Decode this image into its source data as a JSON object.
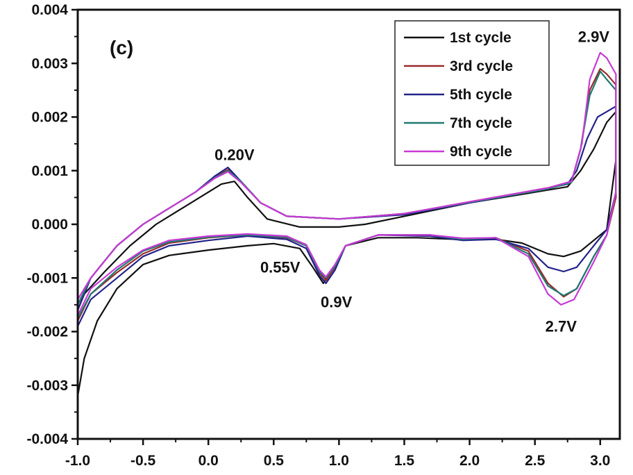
{
  "chart_data": {
    "type": "line",
    "title": "",
    "xlabel": "",
    "ylabel": "",
    "panel_label": "(c)",
    "xlim": [
      -1.0,
      3.15
    ],
    "ylim": [
      -0.004,
      0.004
    ],
    "x_ticks": [
      {
        "value": -1.0,
        "label": "-1.0"
      },
      {
        "value": -0.5,
        "label": "-0.5"
      },
      {
        "value": 0.0,
        "label": "0.0"
      },
      {
        "value": 0.5,
        "label": "0.5"
      },
      {
        "value": 1.0,
        "label": "1.0"
      },
      {
        "value": 1.5,
        "label": "1.5"
      },
      {
        "value": 2.0,
        "label": "2.0"
      },
      {
        "value": 2.5,
        "label": "2.5"
      },
      {
        "value": 3.0,
        "label": "3.0"
      }
    ],
    "y_ticks": [
      {
        "value": 0.004,
        "label": "0.004"
      },
      {
        "value": 0.003,
        "label": "0.003"
      },
      {
        "value": 0.002,
        "label": "0.002"
      },
      {
        "value": 0.001,
        "label": "0.001"
      },
      {
        "value": 0.0,
        "label": "0.000"
      },
      {
        "value": -0.001,
        "label": "-0.001"
      },
      {
        "value": -0.002,
        "label": "-0.002"
      },
      {
        "value": -0.003,
        "label": "-0.003"
      },
      {
        "value": -0.004,
        "label": "-0.004"
      }
    ],
    "grid": false,
    "legend_position": "top-right",
    "annotations": [
      {
        "text": "0.20V",
        "x": 0.2,
        "y": 0.0012
      },
      {
        "text": "2.9V",
        "x": 2.95,
        "y": 0.0034
      },
      {
        "text": "0.55V",
        "x": 0.55,
        "y": -0.0009
      },
      {
        "text": "0.9V",
        "x": 0.98,
        "y": -0.00155
      },
      {
        "text": "2.7V",
        "x": 2.7,
        "y": -0.002
      }
    ],
    "series": [
      {
        "name": "1st cycle",
        "color": "#111111",
        "points": [
          [
            -1.0,
            -0.0032
          ],
          [
            -0.95,
            -0.0025
          ],
          [
            -0.85,
            -0.0018
          ],
          [
            -0.7,
            -0.0012
          ],
          [
            -0.5,
            -0.00075
          ],
          [
            -0.3,
            -0.00058
          ],
          [
            0.0,
            -0.00048
          ],
          [
            0.3,
            -0.0004
          ],
          [
            0.5,
            -0.00036
          ],
          [
            0.7,
            -0.00045
          ],
          [
            0.8,
            -0.0008
          ],
          [
            0.88,
            -0.0011
          ],
          [
            0.95,
            -0.00085
          ],
          [
            1.05,
            -0.0004
          ],
          [
            1.3,
            -0.00025
          ],
          [
            1.6,
            -0.00025
          ],
          [
            1.9,
            -0.00028
          ],
          [
            2.2,
            -0.00028
          ],
          [
            2.4,
            -0.00035
          ],
          [
            2.6,
            -0.00055
          ],
          [
            2.72,
            -0.0006
          ],
          [
            2.85,
            -0.0005
          ],
          [
            2.95,
            -0.0003
          ],
          [
            3.05,
            -0.0001
          ],
          [
            3.12,
            0.0012
          ],
          [
            3.12,
            0.0021
          ],
          [
            3.05,
            0.0019
          ],
          [
            2.95,
            0.0014
          ],
          [
            2.85,
            0.001
          ],
          [
            2.75,
            0.0007
          ],
          [
            2.5,
            0.0006
          ],
          [
            2.0,
            0.0004
          ],
          [
            1.5,
            0.00015
          ],
          [
            1.2,
            0.0
          ],
          [
            1.0,
            -5e-05
          ],
          [
            0.7,
            -5e-05
          ],
          [
            0.45,
            0.0001
          ],
          [
            0.3,
            0.0005
          ],
          [
            0.2,
            0.0008
          ],
          [
            0.1,
            0.00075
          ],
          [
            0.0,
            0.0006
          ],
          [
            -0.2,
            0.0003
          ],
          [
            -0.4,
            0.0
          ],
          [
            -0.6,
            -0.0004
          ],
          [
            -0.8,
            -0.0009
          ],
          [
            -0.95,
            -0.0013
          ],
          [
            -1.0,
            -0.0016
          ]
        ]
      },
      {
        "name": "3rd cycle",
        "color": "#9a2a2a",
        "points": [
          [
            -1.0,
            -0.0018
          ],
          [
            -0.9,
            -0.0013
          ],
          [
            -0.7,
            -0.0009
          ],
          [
            -0.5,
            -0.00055
          ],
          [
            -0.3,
            -0.00035
          ],
          [
            0.0,
            -0.00025
          ],
          [
            0.3,
            -0.0002
          ],
          [
            0.6,
            -0.00025
          ],
          [
            0.75,
            -0.0004
          ],
          [
            0.85,
            -0.0009
          ],
          [
            0.9,
            -0.00105
          ],
          [
            0.97,
            -0.0008
          ],
          [
            1.05,
            -0.0004
          ],
          [
            1.3,
            -0.0002
          ],
          [
            1.7,
            -0.0002
          ],
          [
            1.95,
            -0.00028
          ],
          [
            2.2,
            -0.00025
          ],
          [
            2.45,
            -0.0005
          ],
          [
            2.6,
            -0.0011
          ],
          [
            2.72,
            -0.00135
          ],
          [
            2.82,
            -0.0012
          ],
          [
            2.95,
            -0.0006
          ],
          [
            3.05,
            -0.0002
          ],
          [
            3.12,
            0.0005
          ],
          [
            3.12,
            0.0026
          ],
          [
            3.05,
            0.0028
          ],
          [
            3.0,
            0.0029
          ],
          [
            2.92,
            0.0025
          ],
          [
            2.85,
            0.0014
          ],
          [
            2.78,
            0.0008
          ],
          [
            2.6,
            0.00068
          ],
          [
            2.0,
            0.00042
          ],
          [
            1.5,
            0.0002
          ],
          [
            1.0,
            0.0001
          ],
          [
            0.6,
            0.00015
          ],
          [
            0.4,
            0.0004
          ],
          [
            0.25,
            0.0008
          ],
          [
            0.15,
            0.00102
          ],
          [
            0.05,
            0.00088
          ],
          [
            -0.1,
            0.0006
          ],
          [
            -0.3,
            0.0003
          ],
          [
            -0.5,
            0.0
          ],
          [
            -0.7,
            -0.0004
          ],
          [
            -0.9,
            -0.001
          ],
          [
            -1.0,
            -0.0015
          ]
        ]
      },
      {
        "name": "5th cycle",
        "color": "#22228a",
        "points": [
          [
            -1.0,
            -0.0019
          ],
          [
            -0.9,
            -0.0014
          ],
          [
            -0.7,
            -0.001
          ],
          [
            -0.5,
            -0.0006
          ],
          [
            -0.3,
            -0.0004
          ],
          [
            0.0,
            -0.0003
          ],
          [
            0.3,
            -0.00022
          ],
          [
            0.6,
            -0.00028
          ],
          [
            0.75,
            -0.00045
          ],
          [
            0.85,
            -0.00095
          ],
          [
            0.9,
            -0.0011
          ],
          [
            0.97,
            -0.00085
          ],
          [
            1.05,
            -0.0004
          ],
          [
            1.3,
            -0.0002
          ],
          [
            1.7,
            -0.00022
          ],
          [
            1.95,
            -0.0003
          ],
          [
            2.2,
            -0.00028
          ],
          [
            2.45,
            -0.00045
          ],
          [
            2.6,
            -0.0008
          ],
          [
            2.72,
            -0.00088
          ],
          [
            2.82,
            -0.0008
          ],
          [
            2.95,
            -0.0004
          ],
          [
            3.05,
            -0.0001
          ],
          [
            3.12,
            0.0006
          ],
          [
            3.12,
            0.0022
          ],
          [
            3.05,
            0.0021
          ],
          [
            2.98,
            0.002
          ],
          [
            2.9,
            0.0016
          ],
          [
            2.82,
            0.001
          ],
          [
            2.75,
            0.00075
          ],
          [
            2.5,
            0.00062
          ],
          [
            2.0,
            0.0004
          ],
          [
            1.5,
            0.00018
          ],
          [
            1.0,
            0.0001
          ],
          [
            0.6,
            0.00015
          ],
          [
            0.4,
            0.0004
          ],
          [
            0.25,
            0.0008
          ],
          [
            0.15,
            0.00106
          ],
          [
            0.05,
            0.0009
          ],
          [
            -0.1,
            0.0006
          ],
          [
            -0.3,
            0.0003
          ],
          [
            -0.5,
            0.0
          ],
          [
            -0.7,
            -0.0004
          ],
          [
            -0.9,
            -0.001
          ],
          [
            -1.0,
            -0.0016
          ]
        ]
      },
      {
        "name": "7th cycle",
        "color": "#1f7a72",
        "points": [
          [
            -1.0,
            -0.00175
          ],
          [
            -0.9,
            -0.0013
          ],
          [
            -0.7,
            -0.00085
          ],
          [
            -0.5,
            -0.0005
          ],
          [
            -0.3,
            -0.00033
          ],
          [
            0.0,
            -0.00024
          ],
          [
            0.3,
            -0.0002
          ],
          [
            0.6,
            -0.00024
          ],
          [
            0.75,
            -0.0004
          ],
          [
            0.85,
            -0.00088
          ],
          [
            0.9,
            -0.001
          ],
          [
            0.97,
            -0.00078
          ],
          [
            1.05,
            -0.0004
          ],
          [
            1.3,
            -0.0002
          ],
          [
            1.7,
            -0.0002
          ],
          [
            1.95,
            -0.00028
          ],
          [
            2.2,
            -0.00025
          ],
          [
            2.45,
            -0.00055
          ],
          [
            2.6,
            -0.00115
          ],
          [
            2.72,
            -0.00133
          ],
          [
            2.82,
            -0.0012
          ],
          [
            2.95,
            -0.0006
          ],
          [
            3.05,
            -0.0002
          ],
          [
            3.12,
            0.0006
          ],
          [
            3.12,
            0.0025
          ],
          [
            3.05,
            0.0027
          ],
          [
            3.0,
            0.00285
          ],
          [
            2.92,
            0.0024
          ],
          [
            2.85,
            0.0014
          ],
          [
            2.78,
            0.00078
          ],
          [
            2.6,
            0.00066
          ],
          [
            2.0,
            0.00041
          ],
          [
            1.5,
            0.0002
          ],
          [
            1.0,
            0.0001
          ],
          [
            0.6,
            0.00015
          ],
          [
            0.4,
            0.0004
          ],
          [
            0.25,
            0.0008
          ],
          [
            0.15,
            0.001
          ],
          [
            0.05,
            0.00087
          ],
          [
            -0.1,
            0.0006
          ],
          [
            -0.3,
            0.0003
          ],
          [
            -0.5,
            0.0
          ],
          [
            -0.7,
            -0.0004
          ],
          [
            -0.9,
            -0.001
          ],
          [
            -1.0,
            -0.0015
          ]
        ]
      },
      {
        "name": "9th cycle",
        "color": "#c83ad6",
        "points": [
          [
            -1.0,
            -0.0017
          ],
          [
            -0.9,
            -0.0012
          ],
          [
            -0.7,
            -0.0008
          ],
          [
            -0.5,
            -0.00048
          ],
          [
            -0.3,
            -0.0003
          ],
          [
            0.0,
            -0.00022
          ],
          [
            0.3,
            -0.00018
          ],
          [
            0.6,
            -0.00022
          ],
          [
            0.75,
            -0.00038
          ],
          [
            0.85,
            -0.00085
          ],
          [
            0.9,
            -0.00098
          ],
          [
            0.97,
            -0.00075
          ],
          [
            1.05,
            -0.0004
          ],
          [
            1.3,
            -0.0002
          ],
          [
            1.7,
            -0.0002
          ],
          [
            1.95,
            -0.00026
          ],
          [
            2.2,
            -0.00025
          ],
          [
            2.45,
            -0.0006
          ],
          [
            2.6,
            -0.0013
          ],
          [
            2.7,
            -0.0015
          ],
          [
            2.8,
            -0.0014
          ],
          [
            2.95,
            -0.0007
          ],
          [
            3.05,
            -0.0002
          ],
          [
            3.12,
            0.0006
          ],
          [
            3.12,
            0.0028
          ],
          [
            3.05,
            0.0031
          ],
          [
            3.0,
            0.0032
          ],
          [
            2.92,
            0.0027
          ],
          [
            2.86,
            0.0015
          ],
          [
            2.78,
            0.0008
          ],
          [
            2.6,
            0.00068
          ],
          [
            2.0,
            0.00042
          ],
          [
            1.5,
            0.0002
          ],
          [
            1.0,
            0.0001
          ],
          [
            0.6,
            0.00015
          ],
          [
            0.4,
            0.0004
          ],
          [
            0.25,
            0.00078
          ],
          [
            0.15,
            0.00098
          ],
          [
            0.05,
            0.00086
          ],
          [
            -0.1,
            0.0006
          ],
          [
            -0.3,
            0.0003
          ],
          [
            -0.5,
            0.0
          ],
          [
            -0.7,
            -0.0004
          ],
          [
            -0.9,
            -0.001
          ],
          [
            -1.0,
            -0.0014
          ]
        ]
      }
    ]
  }
}
